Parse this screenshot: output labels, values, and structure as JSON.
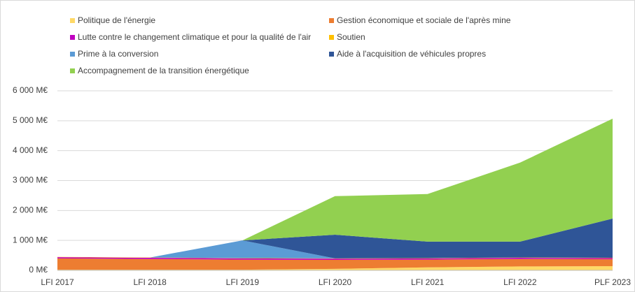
{
  "chart_data": {
    "type": "stacked_area",
    "categories": [
      "LFI 2017",
      "LFI 2018",
      "LFI 2019",
      "LFI 2020",
      "LFI 2021",
      "LFI 2022",
      "PLF 2023"
    ],
    "series": [
      {
        "name": "Politique de l'énergie",
        "color": "#ffd966",
        "values": [
          20,
          20,
          20,
          50,
          100,
          130,
          140
        ]
      },
      {
        "name": "Gestion économique et sociale de l'après mine",
        "color": "#ed7d31",
        "values": [
          380,
          360,
          340,
          300,
          260,
          250,
          230
        ]
      },
      {
        "name": "Lutte contre le changement climatique et pour la qualité de l'air",
        "color": "#c000c0",
        "values": [
          40,
          40,
          40,
          40,
          40,
          40,
          40
        ]
      },
      {
        "name": "Soutien",
        "color": "#ffc000",
        "values": [
          10,
          10,
          10,
          10,
          10,
          10,
          10
        ]
      },
      {
        "name": "Prime à la conversion",
        "color": "#5b9bd5",
        "values": [
          0,
          0,
          590,
          0,
          0,
          0,
          0
        ]
      },
      {
        "name": "Aide à l'acquisition de véhicules propres",
        "color": "#2f5597",
        "values": [
          0,
          0,
          0,
          790,
          550,
          530,
          1310
        ]
      },
      {
        "name": "Accompagnement de la transition énergétique",
        "color": "#92d050",
        "values": [
          0,
          0,
          0,
          1290,
          1590,
          2640,
          3340
        ]
      }
    ],
    "ylim": [
      0,
      6000
    ],
    "yticks": [
      {
        "value": 0,
        "label": "0 M€"
      },
      {
        "value": 1000,
        "label": "1 000 M€"
      },
      {
        "value": 2000,
        "label": "2 000 M€"
      },
      {
        "value": 3000,
        "label": "3 000 M€"
      },
      {
        "value": 4000,
        "label": "4 000 M€"
      },
      {
        "value": 5000,
        "label": "5 000 M€"
      },
      {
        "value": 6000,
        "label": "6 000 M€"
      }
    ],
    "grid": true
  }
}
